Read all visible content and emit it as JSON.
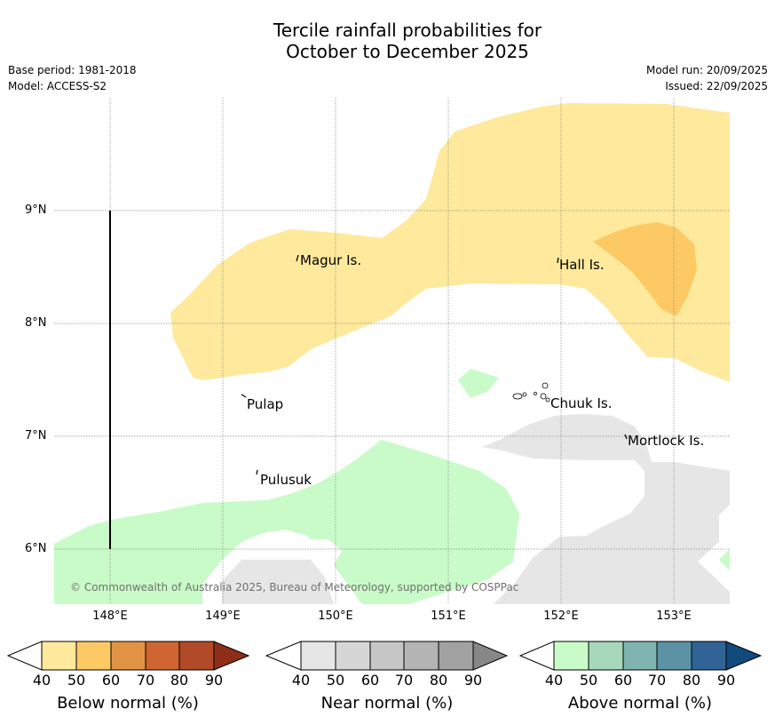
{
  "title": {
    "line1": "Tercile rainfall probabilities for",
    "line2": "October to December 2025"
  },
  "meta": {
    "base_period": "Base period: 1981-2018",
    "model": "Model: ACCESS-S2",
    "model_run": "Model run: 20/09/2025",
    "issued": "Issued: 22/09/2025"
  },
  "axes": {
    "x_ticks": [
      "148°E",
      "149°E",
      "150°E",
      "151°E",
      "152°E",
      "153°E"
    ],
    "y_ticks": [
      "9°N",
      "8°N",
      "7°N",
      "6°N"
    ]
  },
  "places": [
    {
      "name": "Magur Is."
    },
    {
      "name": "Hall Is."
    },
    {
      "name": "Pulap"
    },
    {
      "name": "Chuuk Is."
    },
    {
      "name": "Mortlock Is."
    },
    {
      "name": "Pulusuk"
    }
  ],
  "copyright": "© Commonwealth of Australia 2025, Bureau of Meteorology, supported by COSPPac",
  "legends": [
    {
      "label": "Below normal (%)",
      "ticks": [
        "40",
        "50",
        "60",
        "70",
        "80",
        "90"
      ],
      "colors": [
        "#fee99c",
        "#fdc964",
        "#e19445",
        "#cf6531",
        "#b14a26",
        "#8e2e18"
      ]
    },
    {
      "label": "Near normal (%)",
      "ticks": [
        "40",
        "50",
        "60",
        "70",
        "80",
        "90"
      ],
      "colors": [
        "#e6e6e6",
        "#d6d6d6",
        "#c6c6c6",
        "#b4b4b4",
        "#a2a2a2",
        "#878787"
      ]
    },
    {
      "label": "Above normal (%)",
      "ticks": [
        "40",
        "50",
        "60",
        "70",
        "80",
        "90"
      ],
      "colors": [
        "#c8fbc8",
        "#a6d8bb",
        "#80b4b0",
        "#5b93a4",
        "#306496",
        "#114a7d"
      ]
    }
  ]
}
